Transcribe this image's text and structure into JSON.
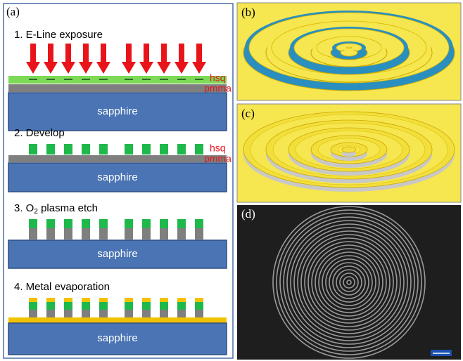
{
  "panels": [
    {
      "label": "(a)"
    },
    {
      "label": "(b)"
    },
    {
      "label": "(c)"
    },
    {
      "label": "(d)"
    }
  ],
  "steps": [
    {
      "title": [
        "1. E-Line exposure"
      ],
      "layers": [
        "hsq",
        "pmma"
      ],
      "substrate": "sapphire"
    },
    {
      "title": [
        "2. Develop"
      ],
      "layers": [
        "hsq",
        "pmma"
      ],
      "substrate": "sapphire"
    },
    {
      "title": [
        "3. O",
        "2",
        "  plasma etch"
      ],
      "substrate": "sapphire"
    },
    {
      "title": [
        "4.  Metal evaporation"
      ],
      "substrate": "sapphire"
    }
  ]
}
